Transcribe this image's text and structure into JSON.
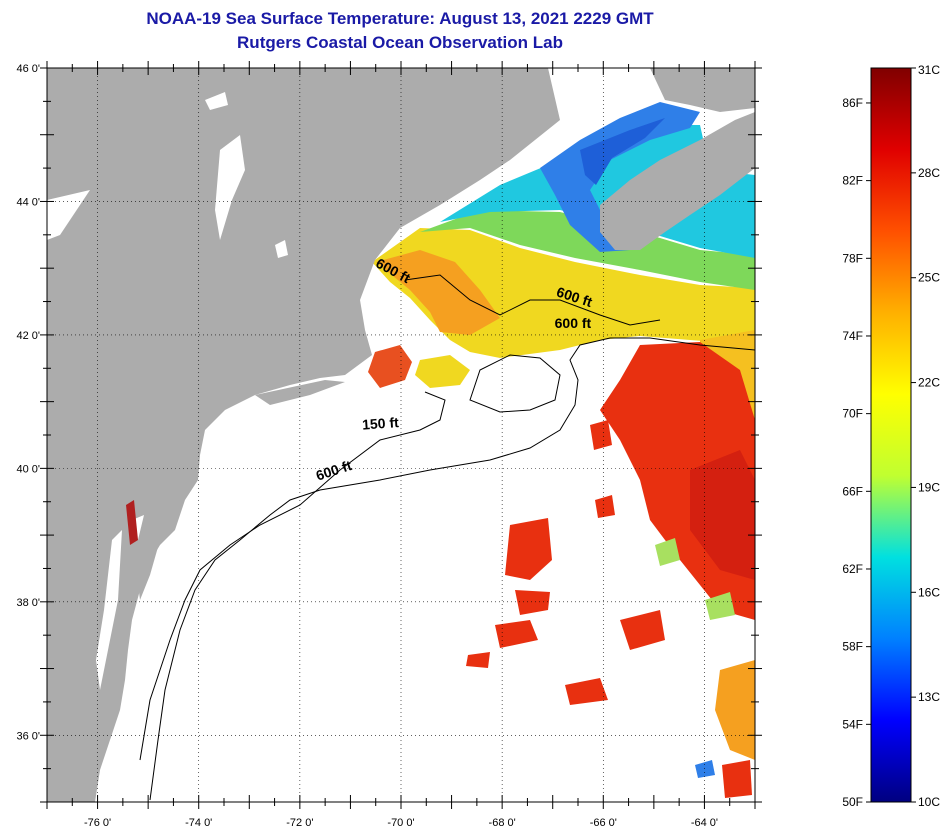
{
  "title": {
    "line1": "NOAA-19 Sea Surface Temperature:  August 13, 2021 2229 GMT",
    "line2": "Rutgers Coastal Ocean Observation Lab"
  },
  "map": {
    "lon_range": [
      -77,
      -63
    ],
    "lat_range": [
      35,
      46
    ],
    "lat_ticks": [
      {
        "value": 46,
        "label": "46 0'"
      },
      {
        "value": 44,
        "label": "44 0'"
      },
      {
        "value": 42,
        "label": "42 0'"
      },
      {
        "value": 40,
        "label": "40 0'"
      },
      {
        "value": 38,
        "label": "38 0'"
      },
      {
        "value": 36,
        "label": "36 0'"
      }
    ],
    "lon_ticks": [
      {
        "value": -76,
        "label": "-76 0'"
      },
      {
        "value": -74,
        "label": "-74 0'"
      },
      {
        "value": -72,
        "label": "-72 0'"
      },
      {
        "value": -70,
        "label": "-70 0'"
      },
      {
        "value": -68,
        "label": "-68 0'"
      },
      {
        "value": -66,
        "label": "-66 0'"
      },
      {
        "value": -64,
        "label": "-64 0'"
      }
    ],
    "contour_labels": [
      {
        "text": "600 ft",
        "lon": -70.2,
        "lat": 42.9
      },
      {
        "text": "600 ft",
        "lon": -66.6,
        "lat": 42.5
      },
      {
        "text": "600 ft",
        "lon": -66.6,
        "lat": 42.1
      },
      {
        "text": "150 ft",
        "lon": -70.4,
        "lat": 40.6
      },
      {
        "text": "600 ft",
        "lon": -71.3,
        "lat": 39.9
      }
    ]
  },
  "colorbar": {
    "fahrenheit": [
      {
        "value": 86,
        "label": "86F"
      },
      {
        "value": 82,
        "label": "82F"
      },
      {
        "value": 78,
        "label": "78F"
      },
      {
        "value": 74,
        "label": "74F"
      },
      {
        "value": 70,
        "label": "70F"
      },
      {
        "value": 66,
        "label": "66F"
      },
      {
        "value": 62,
        "label": "62F"
      },
      {
        "value": 58,
        "label": "58F"
      },
      {
        "value": 54,
        "label": "54F"
      },
      {
        "value": 50,
        "label": "50F"
      }
    ],
    "celsius": [
      {
        "value": 31,
        "label": "31C"
      },
      {
        "value": 28,
        "label": "28C"
      },
      {
        "value": 25,
        "label": "25C"
      },
      {
        "value": 22,
        "label": "22C"
      },
      {
        "value": 19,
        "label": "19C"
      },
      {
        "value": 16,
        "label": "16C"
      },
      {
        "value": 13,
        "label": "13C"
      },
      {
        "value": 10,
        "label": "10C"
      }
    ],
    "min_c": 10,
    "max_c": 31,
    "stops": [
      "#000080",
      "#0000ff",
      "#0080ff",
      "#00e0e0",
      "#c0ff30",
      "#ffff00",
      "#ffb000",
      "#ff5000",
      "#e00000",
      "#800000"
    ]
  },
  "colors": {
    "land": "#acacac",
    "ocean_nodata": "#ffffff",
    "cold": "#2f7fe8",
    "cyan": "#20c8e0",
    "yellow": "#f0d820",
    "orange": "#f5a020",
    "red": "#e83010"
  }
}
